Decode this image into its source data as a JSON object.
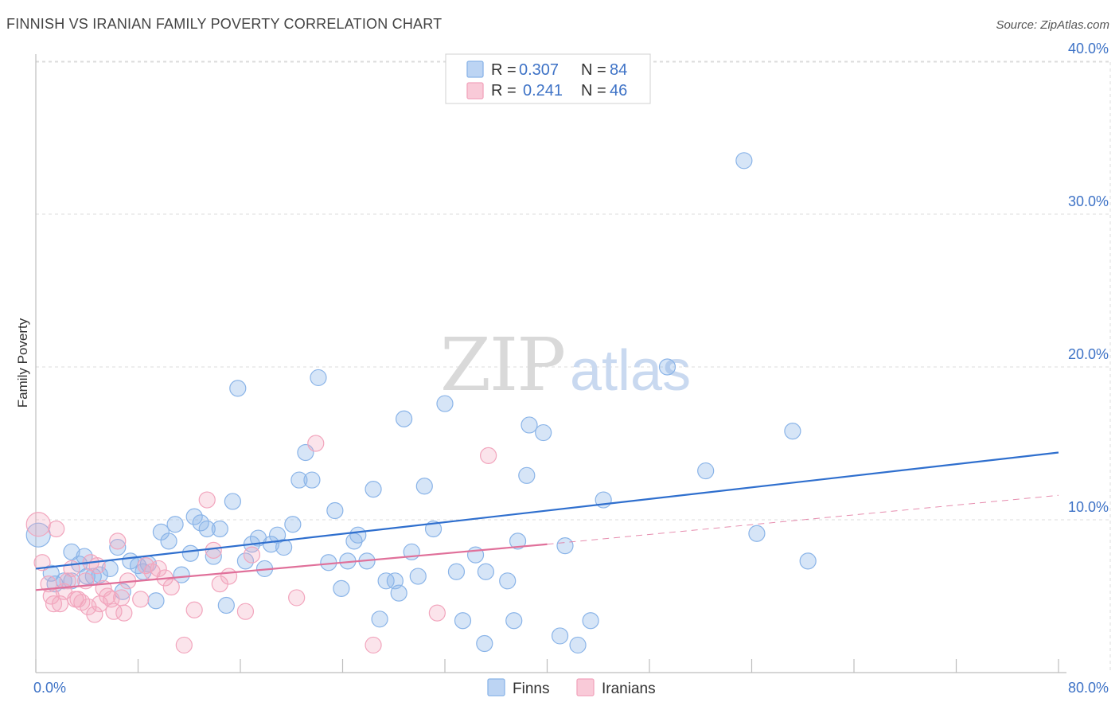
{
  "header": {
    "title": "FINNISH VS IRANIAN FAMILY POVERTY CORRELATION CHART",
    "source": "Source: ZipAtlas.com"
  },
  "watermark": {
    "zip": "ZIP",
    "atlas": "atlas"
  },
  "legend": {
    "rows": [
      {
        "r_label": "R =",
        "r_value": "0.307",
        "n_label": "N =",
        "n_value": "84",
        "color": "#8ab4e8"
      },
      {
        "r_label": "R =",
        "r_value": "0.241",
        "n_label": "N =",
        "n_value": "46",
        "color": "#f2a5bd"
      }
    ]
  },
  "chart_data": {
    "type": "scatter",
    "title": "FINNISH VS IRANIAN FAMILY POVERTY CORRELATION CHART",
    "xlabel": "",
    "ylabel": "Family Poverty",
    "xlim": [
      0,
      80
    ],
    "ylim": [
      0,
      42
    ],
    "x_tick_labels": [
      {
        "value": 0,
        "label": "0.0%"
      },
      {
        "value": 80,
        "label": "80.0%"
      }
    ],
    "y_tick_labels": [
      {
        "value": 10,
        "label": "10.0%"
      },
      {
        "value": 20,
        "label": "20.0%"
      },
      {
        "value": 30,
        "label": "30.0%"
      },
      {
        "value": 40,
        "label": "40.0%"
      }
    ],
    "grid": true,
    "legend_position": "top-center",
    "series": [
      {
        "name": "Finns",
        "color": "#8ab4e8",
        "line_color": "#2f6fce",
        "trend": {
          "x": [
            0,
            80
          ],
          "y": [
            6.8,
            14.4
          ],
          "dashed_after": null
        },
        "points": [
          [
            0.2,
            9.0
          ],
          [
            1.2,
            6.5
          ],
          [
            1.5,
            5.8
          ],
          [
            2.2,
            6.0
          ],
          [
            2.8,
            6.0
          ],
          [
            2.8,
            7.9
          ],
          [
            3.4,
            7.1
          ],
          [
            3.8,
            7.6
          ],
          [
            4.0,
            6.3
          ],
          [
            4.5,
            6.3
          ],
          [
            5.0,
            6.4
          ],
          [
            5.8,
            6.8
          ],
          [
            6.4,
            8.2
          ],
          [
            6.8,
            5.3
          ],
          [
            7.4,
            7.3
          ],
          [
            8.0,
            7.0
          ],
          [
            8.4,
            6.6
          ],
          [
            8.8,
            7.1
          ],
          [
            9.4,
            4.7
          ],
          [
            9.8,
            9.2
          ],
          [
            10.4,
            8.6
          ],
          [
            10.9,
            9.7
          ],
          [
            11.4,
            6.4
          ],
          [
            12.1,
            7.8
          ],
          [
            12.4,
            10.2
          ],
          [
            12.9,
            9.8
          ],
          [
            13.4,
            9.4
          ],
          [
            13.9,
            7.6
          ],
          [
            14.4,
            9.4
          ],
          [
            14.9,
            4.4
          ],
          [
            15.4,
            11.2
          ],
          [
            15.8,
            18.6
          ],
          [
            16.4,
            7.3
          ],
          [
            16.9,
            8.4
          ],
          [
            17.4,
            8.8
          ],
          [
            17.9,
            6.8
          ],
          [
            18.4,
            8.4
          ],
          [
            18.9,
            9.0
          ],
          [
            19.4,
            8.2
          ],
          [
            20.1,
            9.7
          ],
          [
            20.6,
            12.6
          ],
          [
            21.1,
            14.4
          ],
          [
            21.6,
            12.6
          ],
          [
            22.1,
            19.3
          ],
          [
            22.9,
            7.2
          ],
          [
            23.4,
            10.6
          ],
          [
            23.9,
            5.5
          ],
          [
            24.4,
            7.3
          ],
          [
            24.9,
            8.6
          ],
          [
            25.2,
            9.0
          ],
          [
            25.9,
            7.3
          ],
          [
            26.4,
            12.0
          ],
          [
            26.9,
            3.5
          ],
          [
            27.4,
            6.0
          ],
          [
            28.1,
            6.0
          ],
          [
            28.4,
            5.2
          ],
          [
            28.8,
            16.6
          ],
          [
            29.4,
            7.9
          ],
          [
            29.9,
            6.3
          ],
          [
            30.4,
            12.2
          ],
          [
            31.1,
            9.4
          ],
          [
            32.0,
            17.6
          ],
          [
            32.9,
            6.6
          ],
          [
            33.4,
            3.4
          ],
          [
            34.4,
            7.7
          ],
          [
            35.1,
            1.9
          ],
          [
            35.2,
            6.6
          ],
          [
            36.9,
            6.0
          ],
          [
            37.4,
            3.4
          ],
          [
            37.7,
            8.6
          ],
          [
            38.4,
            12.9
          ],
          [
            38.6,
            16.2
          ],
          [
            39.7,
            15.7
          ],
          [
            41.0,
            2.4
          ],
          [
            41.4,
            8.3
          ],
          [
            42.4,
            1.8
          ],
          [
            43.4,
            3.4
          ],
          [
            44.4,
            11.3
          ],
          [
            49.4,
            20.0
          ],
          [
            52.4,
            13.2
          ],
          [
            55.4,
            33.5
          ],
          [
            56.4,
            9.1
          ],
          [
            59.2,
            15.8
          ],
          [
            60.4,
            7.3
          ]
        ]
      },
      {
        "name": "Iranians",
        "color": "#f2a5bd",
        "line_color": "#e0709a",
        "trend": {
          "x": [
            0,
            40
          ],
          "y": [
            5.4,
            8.4
          ],
          "dashed_after": [
            40,
            80,
            11.6
          ]
        },
        "points": [
          [
            0.2,
            9.7
          ],
          [
            0.5,
            7.2
          ],
          [
            1.0,
            5.8
          ],
          [
            1.2,
            5.0
          ],
          [
            1.4,
            4.5
          ],
          [
            1.6,
            9.4
          ],
          [
            1.9,
            4.5
          ],
          [
            2.2,
            5.3
          ],
          [
            2.5,
            6.0
          ],
          [
            2.8,
            6.8
          ],
          [
            3.1,
            4.8
          ],
          [
            3.3,
            4.8
          ],
          [
            3.6,
            4.6
          ],
          [
            3.9,
            6.0
          ],
          [
            4.1,
            4.3
          ],
          [
            4.3,
            7.2
          ],
          [
            4.6,
            3.8
          ],
          [
            4.8,
            7.0
          ],
          [
            5.0,
            4.5
          ],
          [
            5.3,
            5.5
          ],
          [
            5.6,
            5.0
          ],
          [
            5.9,
            4.8
          ],
          [
            6.1,
            4.0
          ],
          [
            6.4,
            8.6
          ],
          [
            6.7,
            4.9
          ],
          [
            6.9,
            3.9
          ],
          [
            7.2,
            6.0
          ],
          [
            8.2,
            4.8
          ],
          [
            8.6,
            7.0
          ],
          [
            9.1,
            6.6
          ],
          [
            9.6,
            6.8
          ],
          [
            10.1,
            6.2
          ],
          [
            10.6,
            5.6
          ],
          [
            11.6,
            1.8
          ],
          [
            12.4,
            4.1
          ],
          [
            13.4,
            11.3
          ],
          [
            13.9,
            8.0
          ],
          [
            14.4,
            5.8
          ],
          [
            15.1,
            6.3
          ],
          [
            16.4,
            4.0
          ],
          [
            16.9,
            7.7
          ],
          [
            20.4,
            4.9
          ],
          [
            21.9,
            15.0
          ],
          [
            26.4,
            1.8
          ],
          [
            31.4,
            3.9
          ],
          [
            35.4,
            14.2
          ]
        ]
      }
    ]
  },
  "bottom_legend": {
    "items": [
      "Finns",
      "Iranians"
    ]
  }
}
